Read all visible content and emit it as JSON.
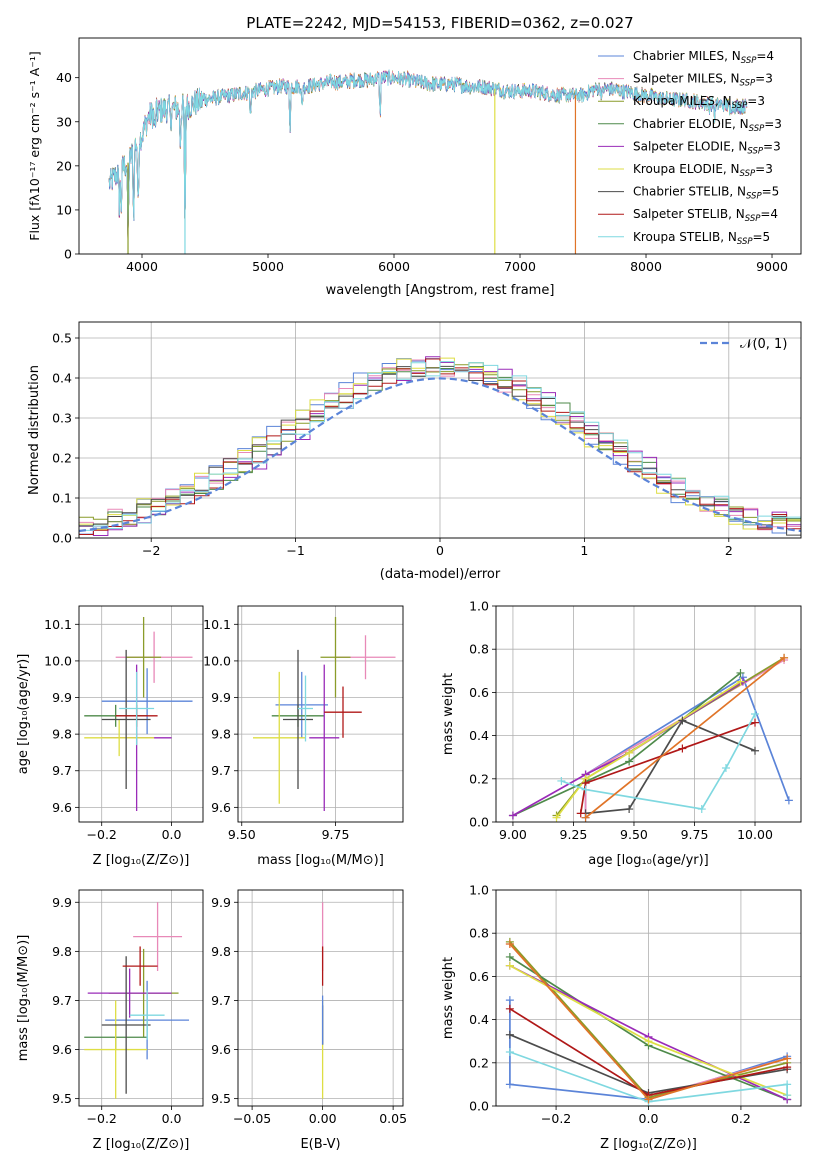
{
  "colors": {
    "Chabrier MILES": "#5b84d8",
    "Salpeter MILES": "#e889b8",
    "Kroupa MILES": "#8a9c2a",
    "Chabrier ELODIE": "#4e8a4a",
    "Salpeter ELODIE": "#9a2bb8",
    "Kroupa ELODIE": "#dede44",
    "Chabrier STELIB": "#4c4c4c",
    "Salpeter STELIB": "#b01818",
    "Kroupa STELIB": "#7fd8e0"
  },
  "chart_data": [
    {
      "id": "spectrum",
      "type": "line",
      "title": "PLATE=2242, MJD=54153, FIBERID=0362, z=0.027",
      "xlabel": "wavelength [Angstrom, rest frame]",
      "ylabel": "Flux [f_λ10^-17 erg cm^-2 s^-1 A^-1]",
      "xlim": [
        3500,
        9230
      ],
      "ylim": [
        0,
        49
      ],
      "xticks": [
        "4000",
        "5000",
        "6000",
        "7000",
        "8000",
        "9000"
      ],
      "yticks": [
        "0",
        "10",
        "20",
        "30",
        "40"
      ],
      "grid": false,
      "legend_position": "top-right",
      "legend": [
        {
          "model": "Chabrier MILES",
          "label": "Chabrier MILES, N",
          "nssp": "=4"
        },
        {
          "model": "Salpeter MILES",
          "label": "Salpeter MILES, N",
          "nssp": "=3"
        },
        {
          "model": "Kroupa MILES",
          "label": "Kroupa MILES, N",
          "nssp": "=3"
        },
        {
          "model": "Chabrier ELODIE",
          "label": "Chabrier ELODIE, N",
          "nssp": "=3"
        },
        {
          "model": "Salpeter ELODIE",
          "label": "Salpeter ELODIE, N",
          "nssp": "=3"
        },
        {
          "model": "Kroupa ELODIE",
          "label": "Kroupa ELODIE, N",
          "nssp": "=3"
        },
        {
          "model": "Chabrier STELIB",
          "label": "Chabrier STELIB, N",
          "nssp": "=5"
        },
        {
          "model": "Salpeter STELIB",
          "label": "Salpeter STELIB, N",
          "nssp": "=4"
        },
        {
          "model": "Kroupa STELIB",
          "label": "Kroupa STELIB, N",
          "nssp": "=5"
        }
      ],
      "continuum": [
        [
          3740,
          16
        ],
        [
          3800,
          18
        ],
        [
          3860,
          20
        ],
        [
          3900,
          21
        ],
        [
          3950,
          25
        ],
        [
          4000,
          27
        ],
        [
          4050,
          31
        ],
        [
          4100,
          32
        ],
        [
          4200,
          33
        ],
        [
          4300,
          33
        ],
        [
          4400,
          34
        ],
        [
          4500,
          35
        ],
        [
          4600,
          35.5
        ],
        [
          4700,
          36
        ],
        [
          4800,
          36.5
        ],
        [
          4900,
          37
        ],
        [
          5000,
          37.5
        ],
        [
          5100,
          38
        ],
        [
          5200,
          38
        ],
        [
          5300,
          38
        ],
        [
          5400,
          38.5
        ],
        [
          5500,
          39
        ],
        [
          5600,
          39
        ],
        [
          5700,
          39.5
        ],
        [
          5800,
          39.5
        ],
        [
          5900,
          40
        ],
        [
          6000,
          40
        ],
        [
          6100,
          39.5
        ],
        [
          6200,
          39
        ],
        [
          6300,
          38.5
        ],
        [
          6400,
          38.5
        ],
        [
          6500,
          38.5
        ],
        [
          6600,
          38
        ],
        [
          6700,
          38
        ],
        [
          6800,
          37.5
        ],
        [
          6900,
          37
        ],
        [
          7000,
          37
        ],
        [
          7100,
          37
        ],
        [
          7200,
          36.5
        ],
        [
          7300,
          36
        ],
        [
          7400,
          36
        ],
        [
          7500,
          36
        ],
        [
          7600,
          37.5
        ],
        [
          7700,
          37.5
        ],
        [
          7800,
          37
        ],
        [
          7900,
          36.5
        ],
        [
          8000,
          36
        ],
        [
          8100,
          35.5
        ],
        [
          8200,
          35
        ],
        [
          8300,
          35
        ],
        [
          8400,
          34.5
        ],
        [
          8500,
          34
        ],
        [
          8600,
          34
        ],
        [
          8700,
          33.5
        ],
        [
          8800,
          33.5
        ]
      ],
      "absorption_lines": [
        [
          3820,
          10
        ],
        [
          3835,
          9
        ],
        [
          3889,
          0
        ],
        [
          3934,
          5
        ],
        [
          3969,
          7
        ],
        [
          4102,
          27
        ],
        [
          4227,
          29
        ],
        [
          4304,
          24
        ],
        [
          4341,
          0
        ],
        [
          4861,
          30
        ],
        [
          5175,
          27
        ],
        [
          5270,
          32
        ],
        [
          5890,
          30
        ],
        [
          7650,
          35
        ],
        [
          8500,
          33
        ],
        [
          8544,
          31
        ],
        [
          8664,
          32
        ]
      ]
    },
    {
      "id": "residuals",
      "type": "histogram",
      "xlabel": "(data-model)/error",
      "ylabel": "Normed distribution",
      "xlim": [
        -2.5,
        2.5
      ],
      "ylim": [
        0,
        0.54
      ],
      "xticks": [
        "−2",
        "−1",
        "0",
        "1",
        "2"
      ],
      "yticks": [
        "0.0",
        "0.1",
        "0.2",
        "0.3",
        "0.4",
        "0.5"
      ],
      "grid": true,
      "legend_position": "top-right",
      "reference_label": "𝒩(0, 1)",
      "reference_color": "#5b84d8",
      "bin_width": 0.1
    },
    {
      "id": "age-vs-Z",
      "type": "errorbar",
      "xlabel": "Z [log10(Z/Z⊙)]",
      "ylabel": "age  [log10(age/yr)]",
      "xlim": [
        -0.265,
        0.09
      ],
      "ylim": [
        9.56,
        10.15
      ],
      "xticks": [
        "−0.2",
        "0.0"
      ],
      "yticks": [
        "9.6",
        "9.7",
        "9.8",
        "9.9",
        "10.0",
        "10.1"
      ],
      "grid": true,
      "points": [
        {
          "model": "Chabrier MILES",
          "x": -0.07,
          "xerr": 0.13,
          "y": 9.89,
          "yerr": 0.09
        },
        {
          "model": "Salpeter MILES",
          "x": -0.05,
          "xerr": 0.11,
          "y": 10.01,
          "yerr": 0.07
        },
        {
          "model": "Kroupa MILES",
          "x": -0.08,
          "xerr": 0.05,
          "y": 10.01,
          "yerr": 0.11
        },
        {
          "model": "Chabrier ELODIE",
          "x": -0.16,
          "xerr": 0.09,
          "y": 9.85,
          "yerr": 0.03
        },
        {
          "model": "Salpeter ELODIE",
          "x": -0.1,
          "xerr": 0.1,
          "y": 9.79,
          "yerr": 0.2
        },
        {
          "model": "Kroupa ELODIE",
          "x": -0.15,
          "xerr": 0.1,
          "y": 9.79,
          "yerr": 0.05
        },
        {
          "model": "Chabrier STELIB",
          "x": -0.13,
          "xerr": 0.07,
          "y": 9.84,
          "yerr": 0.19
        },
        {
          "model": "Salpeter STELIB",
          "x": -0.1,
          "xerr": 0.06,
          "y": 9.85,
          "yerr": 0.03
        },
        {
          "model": "Kroupa STELIB",
          "x": -0.1,
          "xerr": 0.05,
          "y": 9.87,
          "yerr": 0.1
        }
      ]
    },
    {
      "id": "age-vs-mass",
      "type": "errorbar",
      "xlabel": "mass [log10(M/M⊙)]",
      "ylabel": "",
      "xlim": [
        9.49,
        9.93
      ],
      "ylim": [
        9.56,
        10.15
      ],
      "xticks": [
        "9.50",
        "9.75"
      ],
      "yticks": [
        "9.6",
        "9.7",
        "9.8",
        "9.9",
        "10.0",
        "10.1"
      ],
      "grid": true,
      "points": [
        {
          "model": "Chabrier MILES",
          "x": 9.66,
          "xerr": 0.07,
          "y": 9.88,
          "yerr": 0.09
        },
        {
          "model": "Salpeter MILES",
          "x": 9.83,
          "xerr": 0.08,
          "y": 10.01,
          "yerr": 0.06
        },
        {
          "model": "Kroupa MILES",
          "x": 9.75,
          "xerr": 0.04,
          "y": 10.01,
          "yerr": 0.11
        },
        {
          "model": "Chabrier ELODIE",
          "x": 9.65,
          "xerr": 0.07,
          "y": 9.85,
          "yerr": 0.03
        },
        {
          "model": "Salpeter ELODIE",
          "x": 9.72,
          "xerr": 0.04,
          "y": 9.79,
          "yerr": 0.2
        },
        {
          "model": "Kroupa ELODIE",
          "x": 9.6,
          "xerr": 0.07,
          "y": 9.79,
          "yerr": 0.18
        },
        {
          "model": "Chabrier STELIB",
          "x": 9.65,
          "xerr": 0.04,
          "y": 9.84,
          "yerr": 0.19
        },
        {
          "model": "Salpeter STELIB",
          "x": 9.77,
          "xerr": 0.05,
          "y": 9.86,
          "yerr": 0.07
        },
        {
          "model": "Kroupa STELIB",
          "x": 9.67,
          "xerr": 0.02,
          "y": 9.87,
          "yerr": 0.09
        }
      ]
    },
    {
      "id": "mass-weight-vs-age",
      "type": "line",
      "xlabel": "age  [log10(age/yr)]",
      "ylabel": "mass weight",
      "xlim": [
        8.93,
        10.19
      ],
      "ylim": [
        0,
        1
      ],
      "xticks": [
        "9.00",
        "9.25",
        "9.50",
        "9.75",
        "10.00"
      ],
      "yticks": [
        "0.0",
        "0.2",
        "0.4",
        "0.6",
        "0.8",
        "1.0"
      ],
      "grid": true,
      "series": [
        {
          "model": "Chabrier MILES",
          "x": [
            9.3,
            9.3,
            9.95,
            10.14
          ],
          "y": [
            0.02,
            0.22,
            0.67,
            0.1
          ]
        },
        {
          "model": "Salpeter MILES",
          "x": [
            9.3,
            9.3,
            10.12
          ],
          "y": [
            0.04,
            0.22,
            0.75
          ]
        },
        {
          "model": "Kroupa MILES",
          "x": [
            9.18,
            9.3,
            10.12
          ],
          "y": [
            0.03,
            0.2,
            0.76
          ]
        },
        {
          "model": "Chabrier ELODIE",
          "x": [
            9.0,
            9.48,
            9.94
          ],
          "y": [
            0.03,
            0.28,
            0.69
          ]
        },
        {
          "model": "Salpeter ELODIE",
          "x": [
            9.0,
            9.3,
            9.48,
            9.95
          ],
          "y": [
            0.03,
            0.22,
            0.32,
            0.65
          ]
        },
        {
          "model": "Kroupa ELODIE",
          "x": [
            9.18,
            9.3,
            9.48,
            9.94
          ],
          "y": [
            0.02,
            0.2,
            0.32,
            0.65
          ]
        },
        {
          "model": "Chabrier STELIB",
          "x": [
            9.3,
            9.48,
            9.7,
            10.0
          ],
          "y": [
            0.04,
            0.06,
            0.47,
            0.33
          ]
        },
        {
          "model": "Salpeter STELIB",
          "x": [
            9.28,
            9.3,
            9.7,
            10.0
          ],
          "y": [
            0.04,
            0.18,
            0.34,
            0.46
          ]
        },
        {
          "model": "Kroupa STELIB",
          "x": [
            9.2,
            9.3,
            9.78,
            9.88,
            10.0
          ],
          "y": [
            0.19,
            0.15,
            0.06,
            0.25,
            0.5
          ]
        }
      ]
    },
    {
      "id": "mass-vs-Z",
      "type": "errorbar",
      "xlabel": "Z [log10(Z/Z⊙)]",
      "ylabel": "mass [log10(M/M⊙)]",
      "xlim": [
        -0.265,
        0.09
      ],
      "ylim": [
        9.485,
        9.925
      ],
      "xticks": [
        "−0.2",
        "0.0"
      ],
      "yticks": [
        "9.5",
        "9.6",
        "9.7",
        "9.8",
        "9.9"
      ],
      "grid": true,
      "points": [
        {
          "model": "Chabrier MILES",
          "x": -0.07,
          "xerr": 0.12,
          "y": 9.66,
          "yerr": 0.08
        },
        {
          "model": "Salpeter MILES",
          "x": -0.04,
          "xerr": 0.07,
          "y": 9.83,
          "yerr": 0.07
        },
        {
          "model": "Kroupa MILES",
          "x": -0.08,
          "xerr": 0.1,
          "y": 9.715,
          "yerr": 0.09
        },
        {
          "model": "Chabrier ELODIE",
          "x": -0.16,
          "xerr": 0.09,
          "y": 9.625,
          "yerr": 0.025
        },
        {
          "model": "Salpeter ELODIE",
          "x": -0.12,
          "xerr": 0.12,
          "y": 9.715,
          "yerr": 0.05
        },
        {
          "model": "Kroupa ELODIE",
          "x": -0.16,
          "xerr": 0.09,
          "y": 9.6,
          "yerr": 0.1
        },
        {
          "model": "Chabrier STELIB",
          "x": -0.13,
          "xerr": 0.07,
          "y": 9.65,
          "yerr": 0.14
        },
        {
          "model": "Salpeter STELIB",
          "x": -0.09,
          "xerr": 0.05,
          "y": 9.77,
          "yerr": 0.04
        },
        {
          "model": "Kroupa STELIB",
          "x": -0.07,
          "xerr": 0.05,
          "y": 9.67,
          "yerr": 0.05
        }
      ]
    },
    {
      "id": "mass-vs-ebv",
      "type": "errorbar",
      "xlabel": "E(B-V)",
      "ylabel": "",
      "xlim": [
        -0.06,
        0.057
      ],
      "ylim": [
        9.485,
        9.925
      ],
      "xticks": [
        "−0.05",
        "0.00",
        "0.05"
      ],
      "yticks": [
        "9.5",
        "9.6",
        "9.7",
        "9.8",
        "9.9"
      ],
      "grid": true,
      "points": [
        {
          "model": "Salpeter MILES",
          "x": 0,
          "xerr": 0,
          "y": 9.83,
          "yerr": 0.07
        },
        {
          "model": "Kroupa ELODIE",
          "x": 0,
          "xerr": 0,
          "y": 9.6,
          "yerr": 0.1
        },
        {
          "model": "Chabrier STELIB",
          "x": 0,
          "xerr": 0,
          "y": 9.65,
          "yerr": 0.04
        },
        {
          "model": "Salpeter STELIB",
          "x": 0,
          "xerr": 0,
          "y": 9.77,
          "yerr": 0.04
        },
        {
          "model": "Chabrier MILES",
          "x": 0,
          "xerr": 0,
          "y": 9.66,
          "yerr": 0.05
        }
      ]
    },
    {
      "id": "mass-weight-vs-Z",
      "type": "line",
      "xlabel": "Z [log10(Z/Z⊙)]",
      "ylabel": "mass weight",
      "xlim": [
        -0.33,
        0.33
      ],
      "ylim": [
        0,
        1
      ],
      "xticks": [
        "−0.2",
        "0.0",
        "0.2"
      ],
      "yticks": [
        "0.0",
        "0.2",
        "0.4",
        "0.6",
        "0.8",
        "1.0"
      ],
      "grid": true,
      "series": [
        {
          "model": "Chabrier MILES",
          "x": [
            -0.3,
            -0.3,
            0.0,
            0.3
          ],
          "y": [
            0.49,
            0.1,
            0.03,
            0.23
          ]
        },
        {
          "model": "Salpeter MILES",
          "x": [
            -0.3,
            0.0,
            0.3
          ],
          "y": [
            0.75,
            0.04,
            0.22
          ]
        },
        {
          "model": "Kroupa MILES",
          "x": [
            -0.3,
            0.0,
            0.3
          ],
          "y": [
            0.76,
            0.04,
            0.2
          ]
        },
        {
          "model": "Chabrier ELODIE",
          "x": [
            -0.3,
            0.0,
            0.3
          ],
          "y": [
            0.69,
            0.28,
            0.03
          ]
        },
        {
          "model": "Salpeter ELODIE",
          "x": [
            -0.3,
            0.0,
            0.3
          ],
          "y": [
            0.65,
            0.32,
            0.03
          ]
        },
        {
          "model": "Kroupa ELODIE",
          "x": [
            -0.3,
            0.0,
            0.3
          ],
          "y": [
            0.65,
            0.3,
            0.05
          ]
        },
        {
          "model": "Chabrier STELIB",
          "x": [
            -0.3,
            0.0,
            0.3
          ],
          "y": [
            0.33,
            0.06,
            0.17
          ]
        },
        {
          "model": "Salpeter STELIB",
          "x": [
            -0.3,
            0.0,
            0.3
          ],
          "y": [
            0.45,
            0.05,
            0.18
          ]
        },
        {
          "model": "Kroupa STELIB",
          "x": [
            -0.3,
            0.0,
            0.3,
            0.3
          ],
          "y": [
            0.25,
            0.02,
            0.1,
            0.05
          ]
        }
      ]
    }
  ]
}
